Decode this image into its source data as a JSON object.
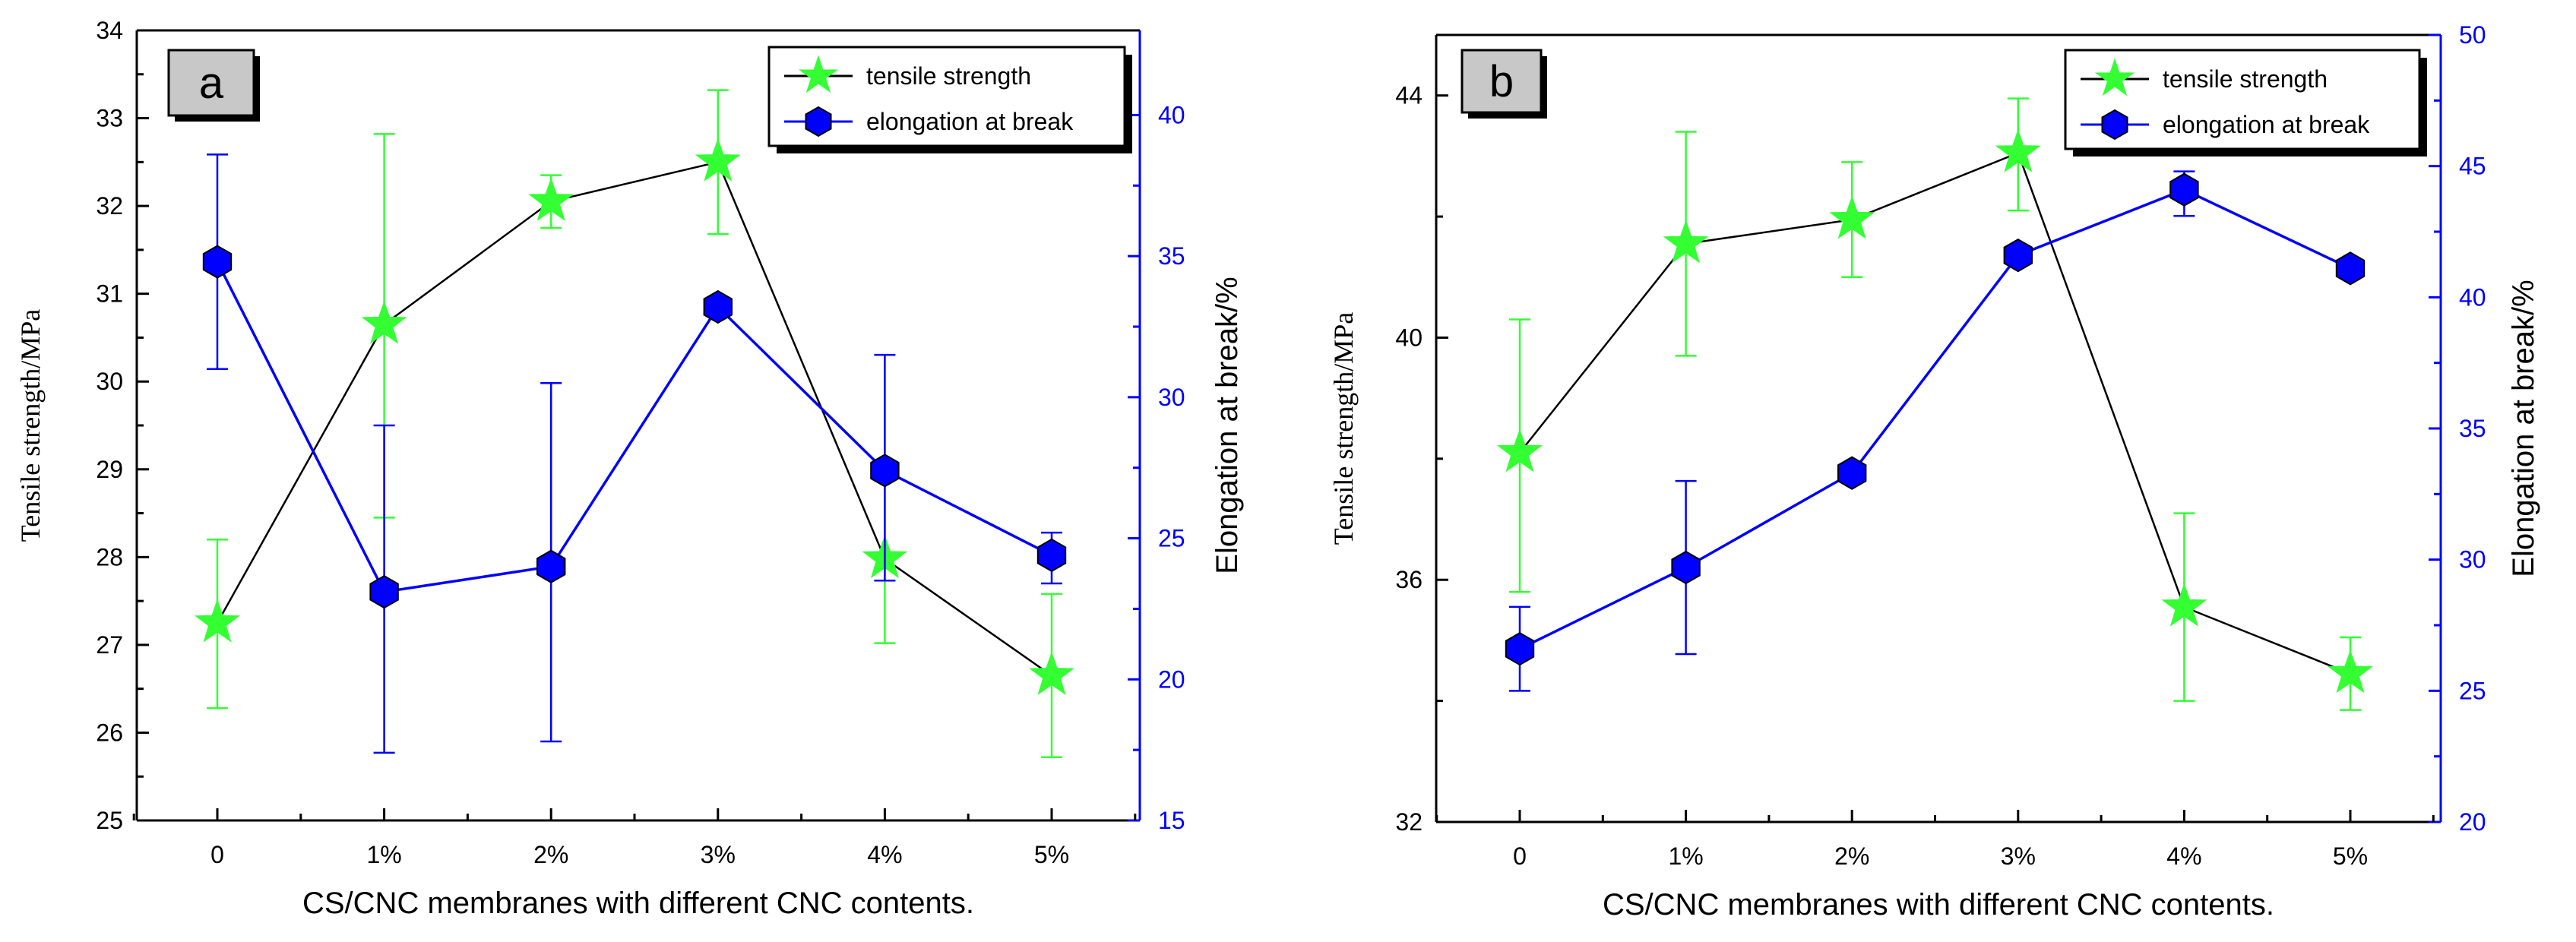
{
  "chart_data": [
    {
      "type": "line",
      "panel_label": "a",
      "categories": [
        "0",
        "1%",
        "2%",
        "3%",
        "4%",
        "5%"
      ],
      "xlabel": "CS/CNC membranes with different CNC contents.",
      "ylabel_left": "Tensile strength/MPa",
      "ylabel_right": "Elongation at break/%",
      "ylim_left": [
        25,
        34
      ],
      "yticks_left": [
        25,
        26,
        27,
        28,
        29,
        30,
        31,
        32,
        33,
        34
      ],
      "ylim_right": [
        15,
        43
      ],
      "yticks_right": [
        15,
        20,
        25,
        30,
        35,
        40
      ],
      "legend_position": "top-right",
      "series": [
        {
          "name": "tensile strength",
          "axis": "left",
          "marker": "star",
          "line_color": "#000000",
          "marker_color": "#33ff33",
          "values": [
            27.25,
            30.65,
            32.05,
            32.5,
            27.98,
            26.65
          ],
          "error_low": [
            26.28,
            28.45,
            31.75,
            31.68,
            27.02,
            25.72
          ],
          "error_high": [
            28.2,
            32.82,
            32.35,
            33.32,
            28.93,
            27.58
          ]
        },
        {
          "name": "elongation at break",
          "axis": "right",
          "marker": "hexagon",
          "line_color": "#0000ff",
          "marker_color": "#0000ff",
          "values": [
            34.8,
            23.1,
            24.0,
            33.2,
            27.4,
            24.4
          ],
          "error_low": [
            31.0,
            17.4,
            17.8,
            33.2,
            23.5,
            23.4
          ],
          "error_high": [
            38.6,
            29.0,
            30.5,
            33.2,
            31.5,
            25.2
          ]
        }
      ]
    },
    {
      "type": "line",
      "panel_label": "b",
      "categories": [
        "0",
        "1%",
        "2%",
        "3%",
        "4%",
        "5%"
      ],
      "xlabel": "CS/CNC membranes with different CNC contents.",
      "ylabel_left": "Tensile strength/MPa",
      "ylabel_right": "Elongation at break/%",
      "ylim_left": [
        32,
        45
      ],
      "yticks_left": [
        32,
        36,
        40,
        44
      ],
      "ylim_right": [
        20,
        50
      ],
      "yticks_right": [
        20,
        25,
        30,
        35,
        40,
        45,
        50
      ],
      "legend_position": "top-right",
      "series": [
        {
          "name": "tensile strength",
          "axis": "left",
          "marker": "star",
          "line_color": "#000000",
          "marker_color": "#33ff33",
          "values": [
            38.1,
            41.55,
            41.95,
            43.05,
            35.55,
            34.45
          ],
          "error_low": [
            35.8,
            39.7,
            41.0,
            42.1,
            34.0,
            33.85
          ],
          "error_high": [
            40.3,
            43.4,
            42.9,
            43.95,
            37.1,
            35.05
          ]
        },
        {
          "name": "elongation at break",
          "axis": "right",
          "marker": "hexagon",
          "line_color": "#0000ff",
          "marker_color": "#0000ff",
          "values": [
            26.6,
            29.7,
            33.3,
            41.6,
            44.1,
            41.1
          ],
          "error_low": [
            25.0,
            26.4,
            33.3,
            41.6,
            43.1,
            41.1
          ],
          "error_high": [
            28.2,
            33.0,
            33.3,
            41.6,
            44.8,
            41.1
          ]
        }
      ]
    }
  ]
}
